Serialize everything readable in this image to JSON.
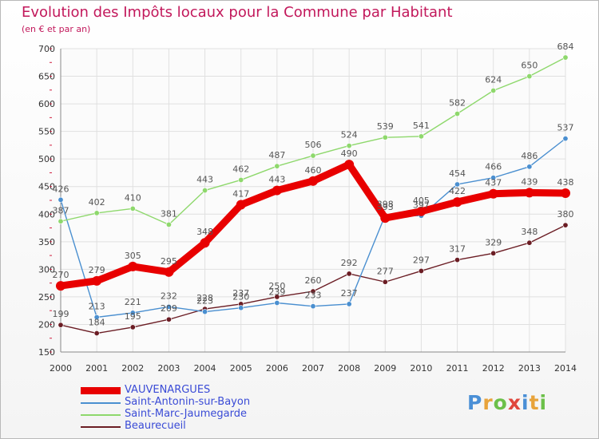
{
  "title": "Evolution des Impôts locaux pour la Commune par Habitant",
  "subtitle": "(en € et par an)",
  "logo": {
    "text": "Proxiti",
    "letter_colors": [
      "#4a8fd6",
      "#e8a33a",
      "#6cc04a",
      "#e0463c",
      "#4a8fd6",
      "#e8a33a",
      "#6cc04a"
    ]
  },
  "chart_data": {
    "type": "line",
    "x": [
      "2000",
      "2001",
      "2002",
      "2003",
      "2004",
      "2005",
      "2006",
      "2007",
      "2008",
      "2009",
      "2010",
      "2011",
      "2012",
      "2013",
      "2014"
    ],
    "ylim": [
      150,
      700
    ],
    "yticks": [
      150,
      200,
      250,
      300,
      350,
      400,
      450,
      500,
      550,
      600,
      650,
      700
    ],
    "grid": true,
    "legend": "bottom-left",
    "series": [
      {
        "name": "VAUVENARGUES",
        "color": "#e80000",
        "values": [
          270,
          279,
          305,
          295,
          348,
          417,
          443,
          460,
          490,
          393,
          405,
          422,
          437,
          439,
          438
        ]
      },
      {
        "name": "Saint-Antonin-sur-Bayon",
        "color": "#4a8fd0",
        "values": [
          426,
          213,
          221,
          232,
          223,
          230,
          239,
          233,
          237,
          398,
          397,
          454,
          466,
          486,
          537
        ]
      },
      {
        "name": "Saint-Marc-Jaumegarde",
        "color": "#8ed86c",
        "values": [
          387,
          402,
          410,
          381,
          443,
          462,
          487,
          506,
          524,
          539,
          541,
          582,
          624,
          650,
          684
        ]
      },
      {
        "name": "Beaurecueil",
        "color": "#6b1d24",
        "values": [
          199,
          184,
          195,
          209,
          228,
          237,
          250,
          260,
          292,
          277,
          297,
          317,
          329,
          348,
          380
        ]
      }
    ]
  }
}
